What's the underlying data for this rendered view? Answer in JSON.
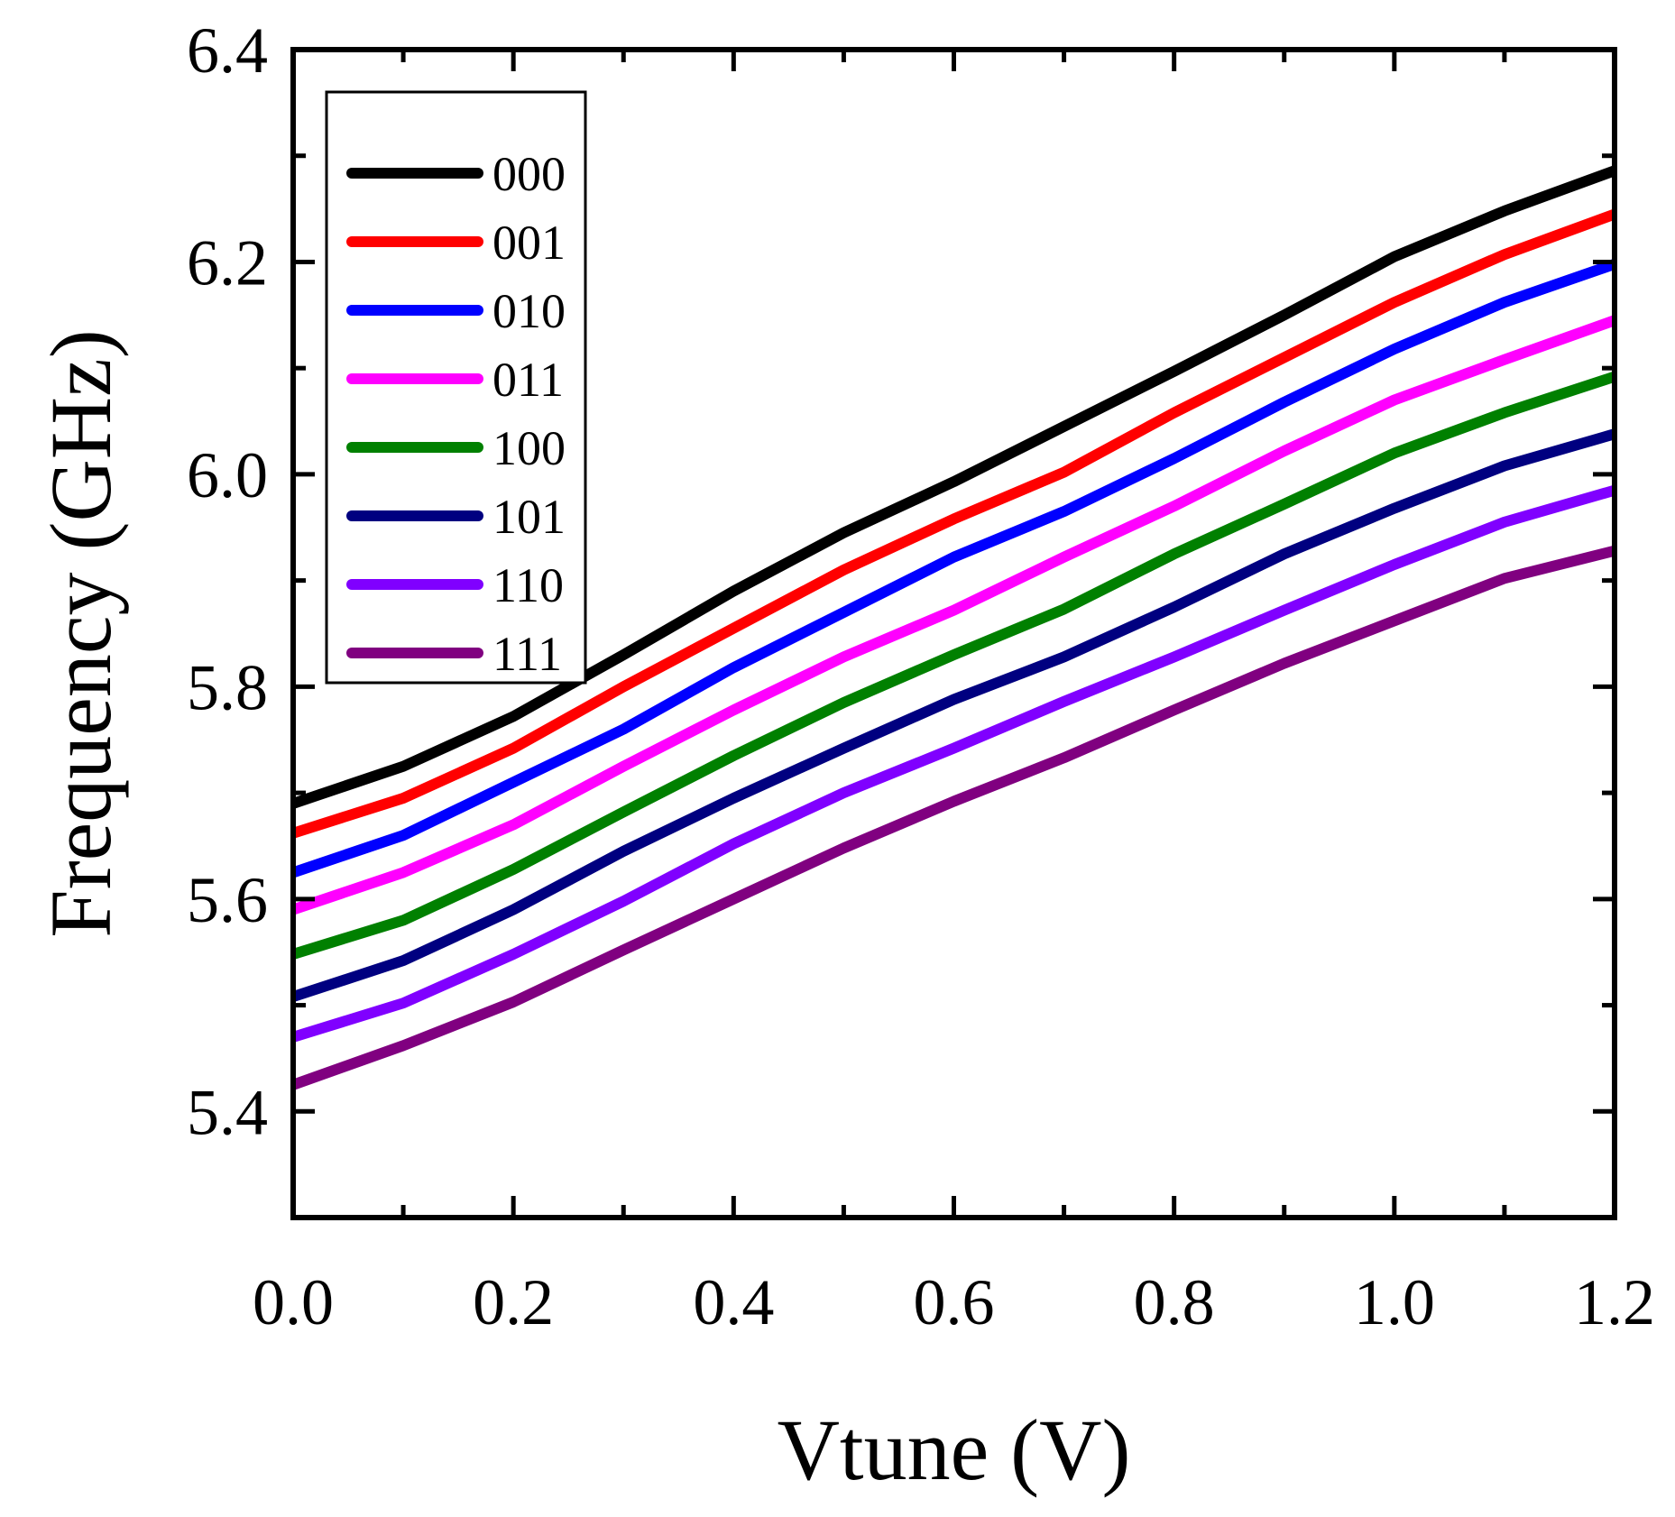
{
  "chart_data": {
    "type": "line",
    "title": "",
    "xlabel": "Vtune (V)",
    "ylabel": "Frequency (GHz)",
    "xlim": [
      0.0,
      1.2
    ],
    "ylim": [
      5.3,
      6.4
    ],
    "x_ticks": [
      "0.0",
      "0.2",
      "0.4",
      "0.6",
      "0.8",
      "1.0",
      "1.2"
    ],
    "y_ticks": [
      "5.4",
      "5.6",
      "5.8",
      "6.0",
      "6.2",
      "6.4"
    ],
    "grid": false,
    "legend_position": "top-left",
    "x": [
      0.0,
      0.1,
      0.2,
      0.3,
      0.4,
      0.5,
      0.6,
      0.7,
      0.8,
      0.9,
      1.0,
      1.1,
      1.2
    ],
    "series": [
      {
        "name": "000",
        "color": "#000000",
        "values": [
          5.69,
          5.725,
          5.772,
          5.83,
          5.89,
          5.945,
          5.993,
          6.045,
          6.097,
          6.15,
          6.205,
          6.248,
          6.286
        ]
      },
      {
        "name": "001",
        "color": "#ff0000",
        "values": [
          5.662,
          5.695,
          5.742,
          5.8,
          5.855,
          5.91,
          5.958,
          6.002,
          6.058,
          6.11,
          6.162,
          6.207,
          6.245
        ]
      },
      {
        "name": "010",
        "color": "#0000ff",
        "values": [
          5.625,
          5.66,
          5.71,
          5.76,
          5.818,
          5.87,
          5.922,
          5.965,
          6.015,
          6.068,
          6.118,
          6.162,
          6.198
        ]
      },
      {
        "name": "011",
        "color": "#ff00ff",
        "values": [
          5.59,
          5.625,
          5.67,
          5.725,
          5.778,
          5.828,
          5.872,
          5.922,
          5.97,
          6.022,
          6.07,
          6.108,
          6.145
        ]
      },
      {
        "name": "100",
        "color": "#008000",
        "values": [
          5.548,
          5.58,
          5.628,
          5.682,
          5.735,
          5.785,
          5.83,
          5.873,
          5.925,
          5.972,
          6.02,
          6.058,
          6.092
        ]
      },
      {
        "name": "101",
        "color": "#000080",
        "values": [
          5.508,
          5.542,
          5.59,
          5.645,
          5.695,
          5.742,
          5.788,
          5.828,
          5.875,
          5.925,
          5.968,
          6.008,
          6.038
        ]
      },
      {
        "name": "110",
        "color": "#8000ff",
        "values": [
          5.47,
          5.502,
          5.548,
          5.598,
          5.652,
          5.7,
          5.742,
          5.786,
          5.828,
          5.872,
          5.915,
          5.955,
          5.985
        ]
      },
      {
        "name": "111",
        "color": "#800080",
        "values": [
          5.425,
          5.462,
          5.503,
          5.552,
          5.6,
          5.648,
          5.692,
          5.733,
          5.778,
          5.822,
          5.862,
          5.902,
          5.928
        ]
      }
    ]
  }
}
